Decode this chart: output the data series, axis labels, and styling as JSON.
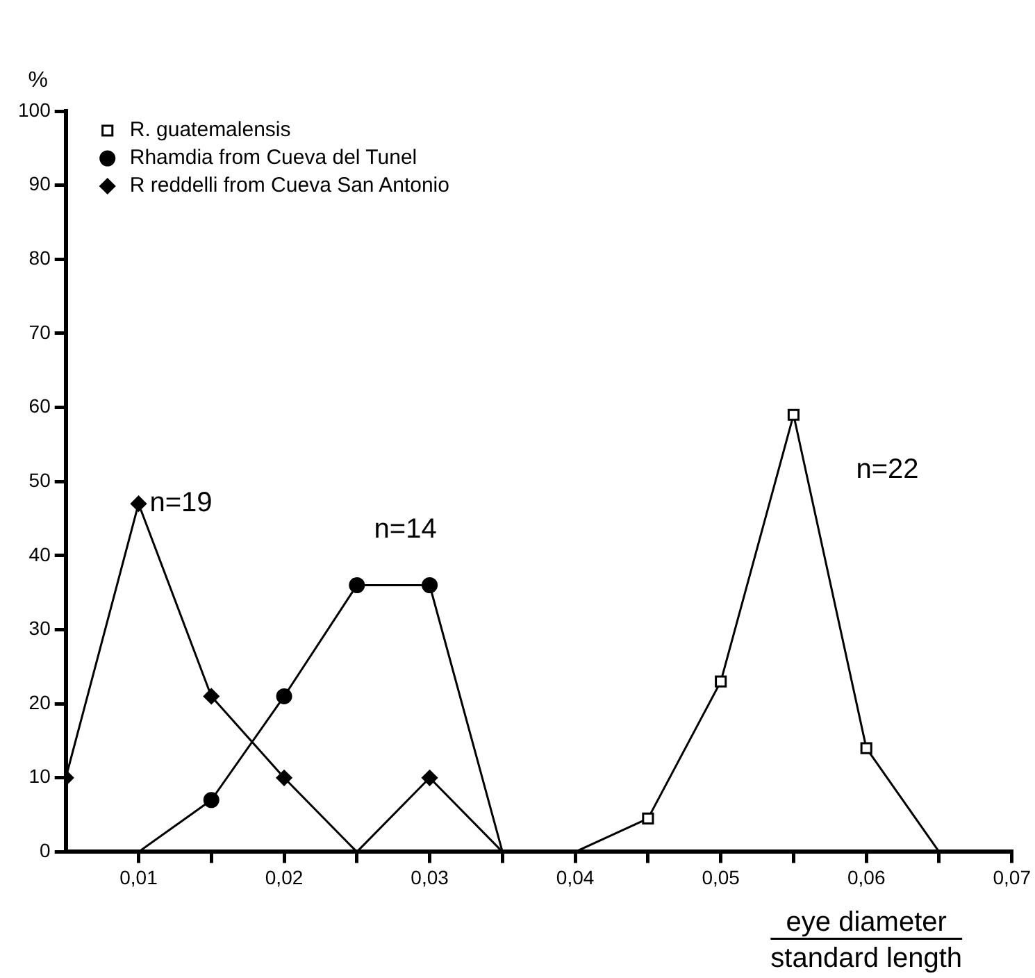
{
  "chart_data": {
    "type": "line",
    "ylabel": "%",
    "xlabel": "eye diameter\nstandard length",
    "xlim": [
      0.005,
      0.07
    ],
    "xticks": [
      {
        "value": 0.01,
        "label": "0,01"
      },
      {
        "value": 0.015,
        "label": null
      },
      {
        "value": 0.02,
        "label": "0,02"
      },
      {
        "value": 0.025,
        "label": null
      },
      {
        "value": 0.03,
        "label": "0,03"
      },
      {
        "value": 0.035,
        "label": null
      },
      {
        "value": 0.04,
        "label": "0,04"
      },
      {
        "value": 0.045,
        "label": null
      },
      {
        "value": 0.05,
        "label": "0,05"
      },
      {
        "value": 0.055,
        "label": null
      },
      {
        "value": 0.06,
        "label": "0,06"
      },
      {
        "value": 0.065,
        "label": null
      },
      {
        "value": 0.07,
        "label": "0,07"
      }
    ],
    "ylim": [
      0,
      100
    ],
    "yticks": [
      0,
      10,
      20,
      30,
      40,
      50,
      60,
      70,
      80,
      90,
      100
    ],
    "grid": false,
    "legend": "top left",
    "line_style": "solid",
    "series": [
      {
        "name": "R. guatemalensis",
        "color": "#000000",
        "marker": "square",
        "x": [
          0.04,
          0.045,
          0.05,
          0.055,
          0.06,
          0.065
        ],
        "values": [
          0,
          4.5,
          23,
          59,
          14,
          0
        ]
      },
      {
        "name": "Rhamdia from Cueva del Tunel",
        "color": "#000000",
        "marker": "circle",
        "x": [
          0.01,
          0.015,
          0.02,
          0.025,
          0.03,
          0.035
        ],
        "values": [
          0,
          7,
          21,
          36,
          36,
          0
        ]
      },
      {
        "name": "R reddelli from Cueva San Antonio",
        "color": "#000000",
        "marker": "diamond",
        "x": [
          0.005,
          0.01,
          0.015,
          0.02,
          0.025,
          0.03,
          0.035
        ],
        "values": [
          10,
          47,
          21,
          10,
          0,
          10,
          0
        ]
      }
    ],
    "annotations": [
      {
        "text": "n=19",
        "x": 0.01,
        "y": 47
      },
      {
        "text": "n=14",
        "x": 0.03,
        "y": 36
      },
      {
        "text": "n=22",
        "x": 0.055,
        "y": 59
      }
    ]
  }
}
